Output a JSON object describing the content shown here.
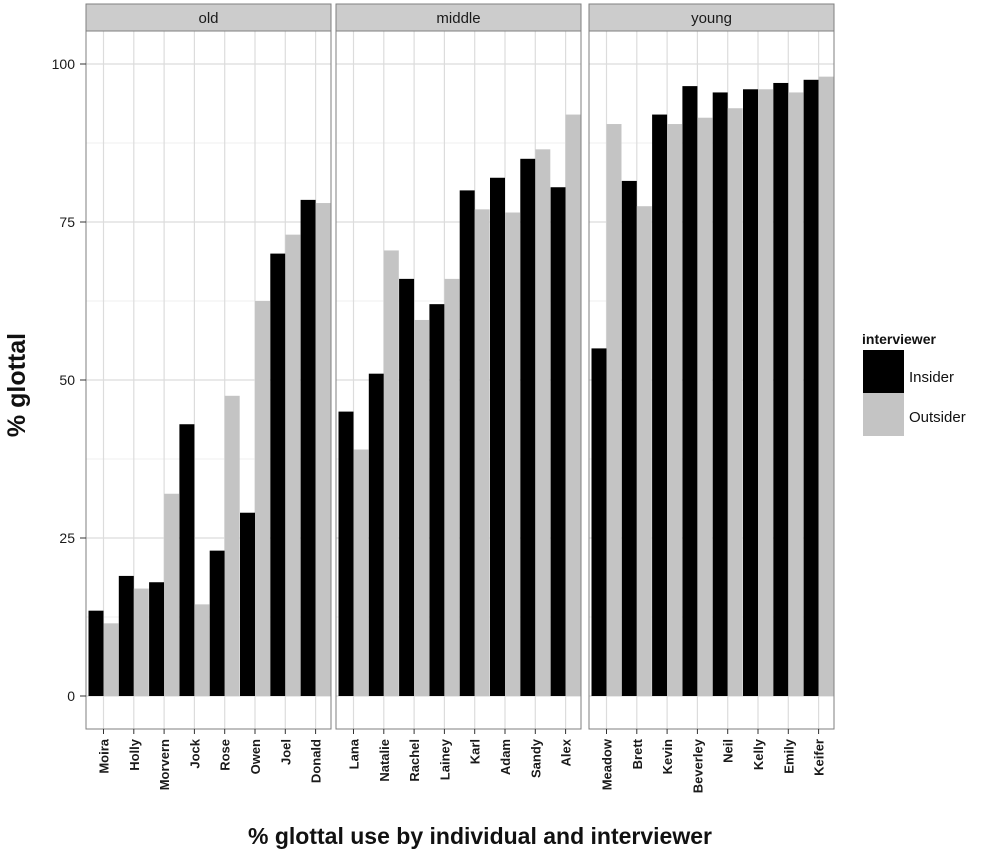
{
  "chart_data": {
    "type": "bar",
    "xlabel": "% glottal use by individual and interviewer",
    "ylabel": "% glottal",
    "ylim": [
      0,
      100
    ],
    "yticks": [
      0,
      25,
      50,
      75,
      100
    ],
    "grid": true,
    "legend": {
      "title": "interviewer",
      "position": "right",
      "entries": [
        {
          "name": "Insider",
          "color": "#000000"
        },
        {
          "name": "Outsider",
          "color": "#c4c4c4"
        }
      ]
    },
    "series_names": [
      "Insider",
      "Outsider"
    ],
    "panels": [
      {
        "label": "old",
        "categories": [
          "Moira",
          "Holly",
          "Morvern",
          "Jock",
          "Rose",
          "Owen",
          "Joel",
          "Donald"
        ],
        "series": [
          {
            "name": "Insider",
            "values": [
              13.5,
              19,
              18,
              43,
              23,
              29,
              70,
              78.5
            ]
          },
          {
            "name": "Outsider",
            "values": [
              11.5,
              17,
              32,
              14.5,
              47.5,
              62.5,
              73,
              78
            ]
          }
        ]
      },
      {
        "label": "middle",
        "categories": [
          "Lana",
          "Natalie",
          "Rachel",
          "Lainey",
          "Karl",
          "Adam",
          "Sandy",
          "Alex"
        ],
        "series": [
          {
            "name": "Insider",
            "values": [
              45,
              51,
              66,
              62,
              80,
              82,
              85,
              80.5
            ]
          },
          {
            "name": "Outsider",
            "values": [
              39,
              70.5,
              59.5,
              66,
              77,
              76.5,
              86.5,
              92
            ]
          }
        ]
      },
      {
        "label": "young",
        "categories": [
          "Meadow",
          "Brett",
          "Kevin",
          "Beverley",
          "Neil",
          "Kelly",
          "Emily",
          "Keifer"
        ],
        "series": [
          {
            "name": "Insider",
            "values": [
              55,
              81.5,
              92,
              96.5,
              95.5,
              96,
              97,
              97.5
            ]
          },
          {
            "name": "Outsider",
            "values": [
              90.5,
              77.5,
              90.5,
              91.5,
              93,
              96,
              95.5,
              98
            ]
          }
        ]
      }
    ]
  },
  "colors": {
    "insider": "#000000",
    "outsider": "#c4c4c4",
    "strip_fill": "#cccccc",
    "grid_major": "#dcdcdc",
    "grid_minor": "#efefef",
    "panel_border": "#7f7f7f"
  }
}
